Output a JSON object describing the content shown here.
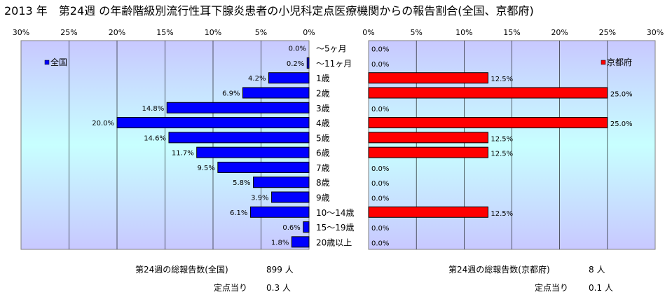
{
  "title": "2013 年　第24週 の年齢階級別流行性耳下腺炎患者の小児科定点医療機関からの報告割合(全国、京都府)",
  "chart_data": [
    {
      "type": "bar",
      "orientation": "horizontal",
      "direction": "right-to-left",
      "legend": "全国",
      "legend_position": "top-left",
      "color": "#0000ff",
      "xlim": [
        0,
        30
      ],
      "xticks": [
        "30%",
        "25%",
        "20%",
        "15%",
        "10%",
        "5%",
        "0%"
      ],
      "categories": [
        "～5ヶ月",
        "～11ヶ月",
        "1歳",
        "2歳",
        "3歳",
        "4歳",
        "5歳",
        "6歳",
        "7歳",
        "8歳",
        "9歳",
        "10～14歳",
        "15～19歳",
        "20歳以上"
      ],
      "values": [
        0.0,
        0.2,
        4.2,
        6.9,
        14.8,
        20.0,
        14.6,
        11.7,
        9.5,
        5.8,
        3.9,
        6.1,
        0.6,
        1.8
      ],
      "labels": [
        "0.0%",
        "0.2%",
        "4.2%",
        "6.9%",
        "14.8%",
        "20.0%",
        "14.6%",
        "11.7%",
        "9.5%",
        "5.8%",
        "3.9%",
        "6.1%",
        "0.6%",
        "1.8%"
      ]
    },
    {
      "type": "bar",
      "orientation": "horizontal",
      "direction": "left-to-right",
      "legend": "京都府",
      "legend_position": "top-right",
      "color": "#ff0000",
      "xlim": [
        0,
        30
      ],
      "xticks": [
        "0%",
        "5%",
        "10%",
        "15%",
        "20%",
        "25%",
        "30%"
      ],
      "values": [
        0.0,
        0.0,
        12.5,
        25.0,
        0.0,
        25.0,
        12.5,
        12.5,
        0.0,
        0.0,
        0.0,
        12.5,
        0.0,
        0.0
      ],
      "labels": [
        "0.0%",
        "0.0%",
        "12.5%",
        "25.0%",
        "0.0%",
        "25.0%",
        "12.5%",
        "12.5%",
        "0.0%",
        "0.0%",
        "0.0%",
        "12.5%",
        "0.0%",
        "0.0%"
      ]
    }
  ],
  "footer": {
    "national_total_label": "第24週の総報告数(全国)",
    "national_total_value": "899 人",
    "national_per_label": "定点当り",
    "national_per_value": "0.3 人",
    "kyoto_total_label": "第24週の総報告数(京都府)",
    "kyoto_total_value": "8 人",
    "kyoto_per_label": "定点当り",
    "kyoto_per_value": "0.1 人"
  }
}
